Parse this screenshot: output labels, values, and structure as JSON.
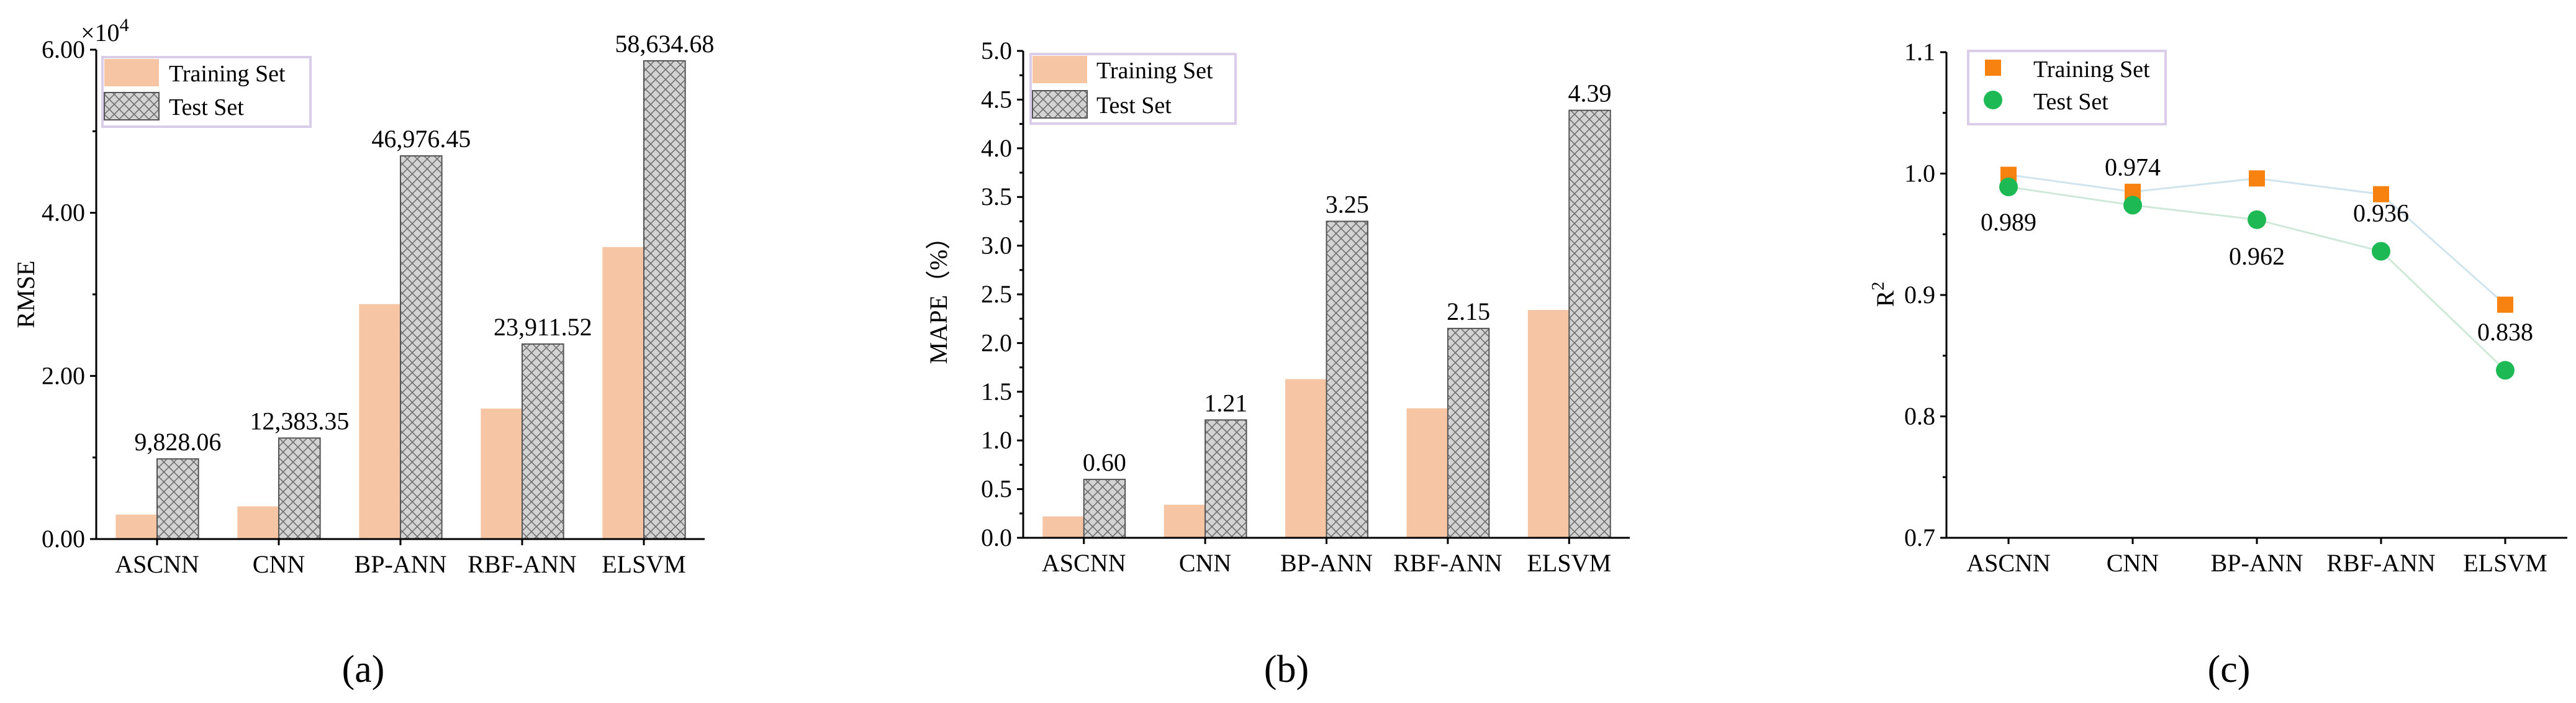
{
  "chart_data": [
    {
      "type": "bar",
      "panel_label": "(a)",
      "title": "",
      "xlabel": "",
      "ylabel": "RMSE",
      "y_multiplier": "×10",
      "y_multiplier_exp": "4",
      "ylim": [
        0,
        60000
      ],
      "yticks": [
        0,
        20000,
        40000,
        60000
      ],
      "ytick_labels": [
        "0.00",
        "2.00",
        "4.00",
        "6.00"
      ],
      "categories": [
        "ASCNN",
        "CNN",
        "BP-ANN",
        "RBF-ANN",
        "ELSVM"
      ],
      "series": [
        {
          "name": "Training Set",
          "values": [
            3000,
            4000,
            28800,
            16000,
            35800
          ]
        },
        {
          "name": "Test Set",
          "values": [
            9828.06,
            12383.35,
            46976.45,
            23911.52,
            58634.68
          ]
        }
      ],
      "value_labels": [
        "9,828.06",
        "12,383.35",
        "46,976.45",
        "23,911.52",
        "58,634.68"
      ],
      "legend": [
        "Training Set",
        "Test Set"
      ],
      "legend_position": "top-left"
    },
    {
      "type": "bar",
      "panel_label": "(b)",
      "title": "",
      "xlabel": "",
      "ylabel": "MAPE（%）",
      "ylim": [
        0,
        5.0
      ],
      "yticks": [
        0,
        0.5,
        1.0,
        1.5,
        2.0,
        2.5,
        3.0,
        3.5,
        4.0,
        4.5,
        5.0
      ],
      "ytick_labels": [
        "0.0",
        "0.5",
        "1.0",
        "1.5",
        "2.0",
        "2.5",
        "3.0",
        "3.5",
        "4.0",
        "4.5",
        "5.0"
      ],
      "categories": [
        "ASCNN",
        "CNN",
        "BP-ANN",
        "RBF-ANN",
        "ELSVM"
      ],
      "series": [
        {
          "name": "Training Set",
          "values": [
            0.22,
            0.34,
            1.63,
            1.33,
            2.34
          ]
        },
        {
          "name": "Test Set",
          "values": [
            0.6,
            1.21,
            3.25,
            2.15,
            4.39
          ]
        }
      ],
      "value_labels": [
        "0.60",
        "1.21",
        "3.25",
        "2.15",
        "4.39"
      ],
      "legend": [
        "Training Set",
        "Test Set"
      ],
      "legend_position": "top-left"
    },
    {
      "type": "scatter",
      "panel_label": "(c)",
      "title": "",
      "xlabel": "",
      "ylabel": "R",
      "ylabel_sup": "2",
      "ylim": [
        0.7,
        1.1
      ],
      "yticks": [
        0.7,
        0.8,
        0.9,
        1.0,
        1.1
      ],
      "ytick_labels": [
        "0.7",
        "0.8",
        "0.9",
        "1.0",
        "1.1"
      ],
      "categories": [
        "ASCNN",
        "CNN",
        "BP-ANN",
        "RBF-ANN",
        "ELSVM"
      ],
      "series": [
        {
          "name": "Training Set",
          "values": [
            0.999,
            0.985,
            0.996,
            0.983,
            0.892
          ],
          "color": "#f7820f",
          "marker": "square"
        },
        {
          "name": "Test Set",
          "values": [
            0.989,
            0.974,
            0.962,
            0.936,
            0.838
          ],
          "color": "#1db954",
          "marker": "circle"
        }
      ],
      "value_labels": [
        "0.989",
        "0.974",
        "0.962",
        "0.936",
        "0.838"
      ],
      "legend": [
        "Training Set",
        "Test Set"
      ],
      "legend_position": "top-left"
    }
  ]
}
